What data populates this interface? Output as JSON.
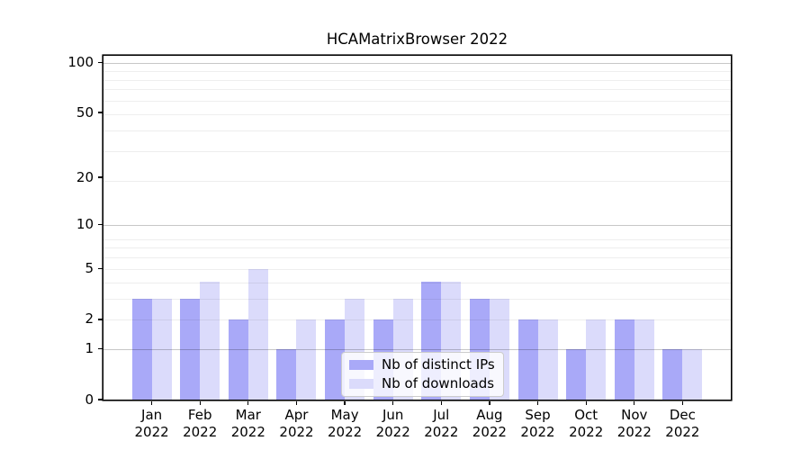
{
  "figure": {
    "title": "HCAMatrixBrowser 2022"
  },
  "chart_data": {
    "type": "bar",
    "title": "HCAMatrixBrowser 2022",
    "categories": [
      "Jan",
      "Feb",
      "Mar",
      "Apr",
      "May",
      "Jun",
      "Jul",
      "Aug",
      "Sep",
      "Oct",
      "Nov",
      "Dec"
    ],
    "year_label": "2022",
    "series": [
      {
        "name": "Nb of distinct IPs",
        "color": "#a9a9f8",
        "values": [
          3,
          3,
          2,
          1,
          2,
          2,
          4,
          3,
          2,
          1,
          2,
          1
        ]
      },
      {
        "name": "Nb of downloads",
        "color": "#dbdbfb",
        "values": [
          3,
          4,
          5,
          2,
          3,
          3,
          4,
          3,
          2,
          2,
          2,
          1
        ]
      }
    ],
    "xlabel": "",
    "ylabel": "",
    "yscale": "log1p",
    "yticks": [
      0,
      1,
      2,
      5,
      10,
      20,
      50,
      100
    ],
    "ylim": [
      0,
      110
    ],
    "xlim": [
      -1,
      12
    ],
    "grid": {
      "major": [
        1,
        10,
        100
      ],
      "minor": [
        2,
        3,
        4,
        5,
        6,
        7,
        8,
        19,
        29,
        39,
        49,
        59,
        69,
        79,
        89
      ]
    },
    "legend_position": "lower center"
  }
}
